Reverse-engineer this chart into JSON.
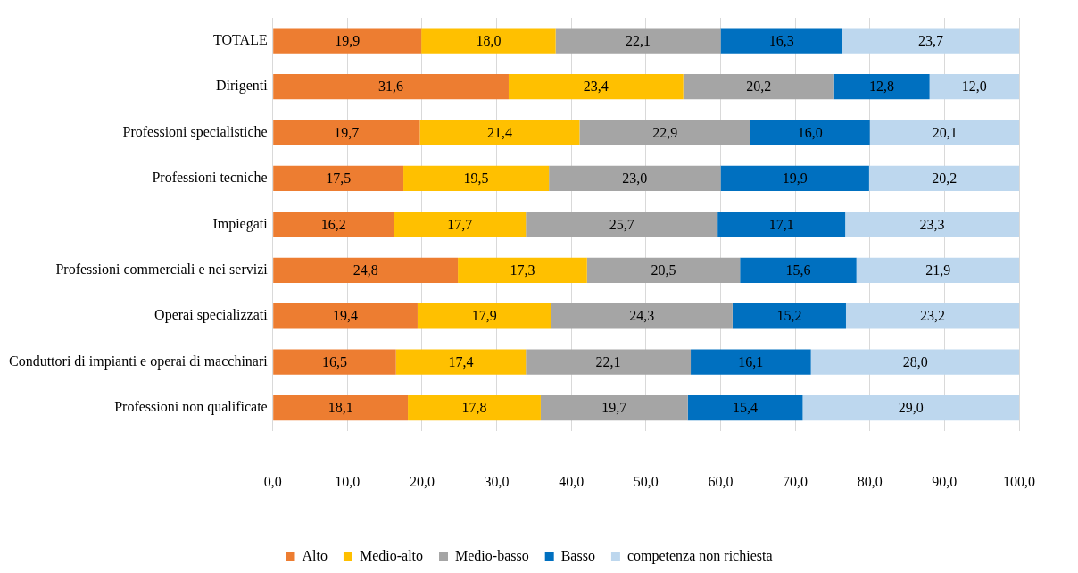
{
  "chart_data": {
    "type": "bar",
    "orientation": "horizontal",
    "stacked": true,
    "categories": [
      "TOTALE",
      "Dirigenti",
      "Professioni specialistiche",
      "Professioni tecniche",
      "Impiegati",
      "Professioni commerciali e nei servizi",
      "Operai specializzati",
      "Conduttori di impianti e operai di macchinari",
      "Professioni non qualificate"
    ],
    "series": [
      {
        "name": "Alto",
        "color": "#ed7d31",
        "values": [
          19.9,
          31.6,
          19.7,
          17.5,
          16.2,
          24.8,
          19.4,
          16.5,
          18.1
        ],
        "value_labels": [
          "19,9",
          "31,6",
          "19,7",
          "17,5",
          "16,2",
          "24,8",
          "19,4",
          "16,5",
          "18,1"
        ]
      },
      {
        "name": "Medio-alto",
        "color": "#ffc000",
        "values": [
          18.0,
          23.4,
          21.4,
          19.5,
          17.7,
          17.3,
          17.9,
          17.4,
          17.8
        ],
        "value_labels": [
          "18,0",
          "23,4",
          "21,4",
          "19,5",
          "17,7",
          "17,3",
          "17,9",
          "17,4",
          "17,8"
        ]
      },
      {
        "name": "Medio-basso",
        "color": "#a5a5a5",
        "values": [
          22.1,
          20.2,
          22.9,
          23.0,
          25.7,
          20.5,
          24.3,
          22.1,
          19.7
        ],
        "value_labels": [
          "22,1",
          "20,2",
          "22,9",
          "23,0",
          "25,7",
          "20,5",
          "24,3",
          "22,1",
          "19,7"
        ]
      },
      {
        "name": "Basso",
        "color": "#0070c0",
        "values": [
          16.3,
          12.8,
          16.0,
          19.9,
          17.1,
          15.6,
          15.2,
          16.1,
          15.4
        ],
        "value_labels": [
          "16,3",
          "12,8",
          "16,0",
          "19,9",
          "17,1",
          "15,6",
          "15,2",
          "16,1",
          "15,4"
        ]
      },
      {
        "name": "competenza non richiesta",
        "color": "#bdd7ee",
        "values": [
          23.7,
          12.0,
          20.1,
          20.2,
          23.3,
          21.9,
          23.2,
          28.0,
          29.0
        ],
        "value_labels": [
          "23,7",
          "12,0",
          "20,1",
          "20,2",
          "23,3",
          "21,9",
          "23,2",
          "28,0",
          "29,0"
        ]
      }
    ],
    "xlim": [
      0,
      100
    ],
    "xticks": [
      {
        "value": 0,
        "label": "0,0"
      },
      {
        "value": 10,
        "label": "10,0"
      },
      {
        "value": 20,
        "label": "20,0"
      },
      {
        "value": 30,
        "label": "30,0"
      },
      {
        "value": 40,
        "label": "40,0"
      },
      {
        "value": 50,
        "label": "50,0"
      },
      {
        "value": 60,
        "label": "60,0"
      },
      {
        "value": 70,
        "label": "70,0"
      },
      {
        "value": 80,
        "label": "80,0"
      },
      {
        "value": 90,
        "label": "90,0"
      },
      {
        "value": 100,
        "label": "100,0"
      }
    ],
    "grid": "x",
    "legend": "bottom"
  }
}
